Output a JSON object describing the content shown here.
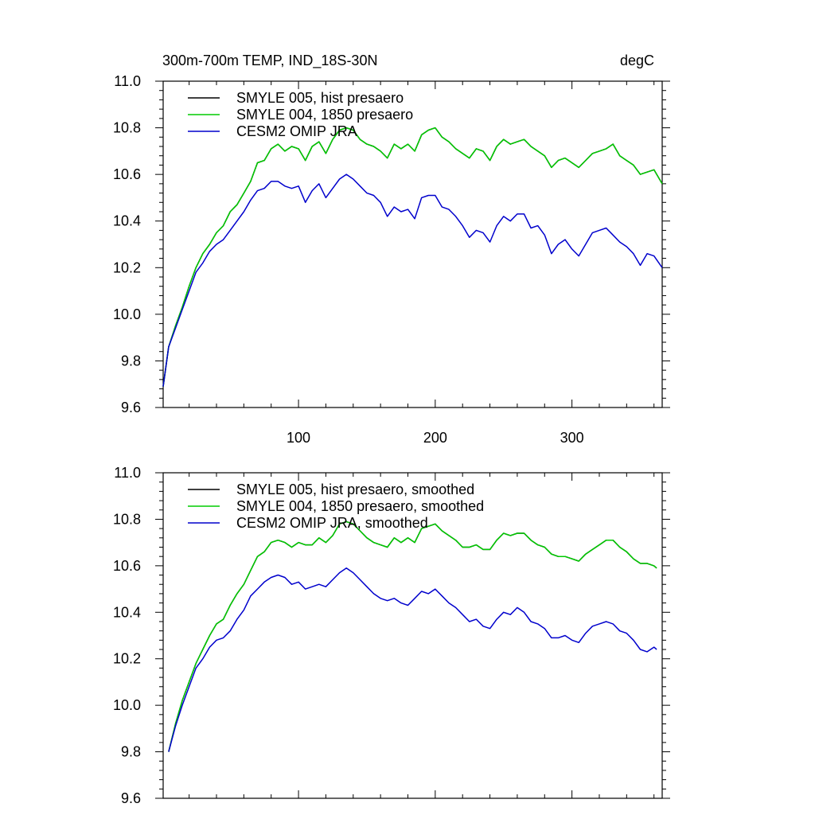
{
  "figure": {
    "title_left": "300m-700m TEMP, IND_18S-30N",
    "title_right": "degC"
  },
  "chart_data": [
    {
      "type": "line",
      "title": "300m-700m TEMP, IND_18S-30N",
      "units": "degC",
      "xlim": [
        1,
        366
      ],
      "ylim": [
        9.6,
        11.0
      ],
      "x_ticks": [
        100,
        200,
        300
      ],
      "x_tick_labels": [
        "100",
        "200",
        "300"
      ],
      "y_ticks": [
        9.6,
        9.8,
        10.0,
        10.2,
        10.4,
        10.6,
        10.8,
        11.0
      ],
      "y_tick_labels": [
        "9.6",
        "9.8",
        "10.0",
        "10.2",
        "10.4",
        "10.6",
        "10.8",
        "11.0"
      ],
      "grid": false,
      "legend_position": "top-left",
      "x": [
        1,
        5,
        10,
        15,
        20,
        25,
        30,
        35,
        40,
        45,
        50,
        55,
        60,
        65,
        70,
        75,
        80,
        85,
        90,
        95,
        100,
        105,
        110,
        115,
        120,
        125,
        130,
        135,
        140,
        145,
        150,
        155,
        160,
        165,
        170,
        175,
        180,
        185,
        190,
        195,
        200,
        205,
        210,
        215,
        220,
        225,
        230,
        235,
        240,
        245,
        250,
        255,
        260,
        265,
        270,
        275,
        280,
        285,
        290,
        295,
        300,
        305,
        310,
        315,
        320,
        325,
        330,
        335,
        340,
        345,
        350,
        355,
        360,
        366
      ],
      "series": [
        {
          "name": "SMYLE 005, hist presaero",
          "color": "#000000",
          "values": [
            9.69,
            9.86,
            9.95,
            10.03,
            10.12,
            10.2,
            10.26,
            10.3,
            10.35,
            10.38,
            10.44,
            10.47,
            10.52,
            10.57,
            10.65,
            10.66,
            10.71,
            10.73,
            10.7,
            10.72,
            10.71,
            10.66,
            10.72,
            10.74,
            10.69,
            10.75,
            10.79,
            10.8,
            10.79,
            10.75,
            10.73,
            10.72,
            10.7,
            10.67,
            10.73,
            10.71,
            10.73,
            10.7,
            10.77,
            10.79,
            10.8,
            10.76,
            10.74,
            10.71,
            10.69,
            10.67,
            10.71,
            10.7,
            10.66,
            10.72,
            10.75,
            10.73,
            10.74,
            10.75,
            10.72,
            10.7,
            10.68,
            10.63,
            10.66,
            10.67,
            10.65,
            10.63,
            10.66,
            10.69,
            10.7,
            10.71,
            10.73,
            10.68,
            10.66,
            10.64,
            10.6,
            10.61,
            10.62,
            10.56
          ]
        },
        {
          "name": "SMYLE 004, 1850 presaero",
          "color": "#00cc00",
          "values": [
            9.69,
            9.86,
            9.95,
            10.03,
            10.12,
            10.2,
            10.26,
            10.3,
            10.35,
            10.38,
            10.44,
            10.47,
            10.52,
            10.57,
            10.65,
            10.66,
            10.71,
            10.73,
            10.7,
            10.72,
            10.71,
            10.66,
            10.72,
            10.74,
            10.69,
            10.75,
            10.79,
            10.8,
            10.79,
            10.75,
            10.73,
            10.72,
            10.7,
            10.67,
            10.73,
            10.71,
            10.73,
            10.7,
            10.77,
            10.79,
            10.8,
            10.76,
            10.74,
            10.71,
            10.69,
            10.67,
            10.71,
            10.7,
            10.66,
            10.72,
            10.75,
            10.73,
            10.74,
            10.75,
            10.72,
            10.7,
            10.68,
            10.63,
            10.66,
            10.67,
            10.65,
            10.63,
            10.66,
            10.69,
            10.7,
            10.71,
            10.73,
            10.68,
            10.66,
            10.64,
            10.6,
            10.61,
            10.62,
            10.56
          ]
        },
        {
          "name": "CESM2 OMIP JRA",
          "color": "#0000cc",
          "values": [
            9.69,
            9.86,
            9.94,
            10.02,
            10.1,
            10.18,
            10.22,
            10.27,
            10.3,
            10.32,
            10.36,
            10.4,
            10.44,
            10.49,
            10.53,
            10.54,
            10.57,
            10.57,
            10.55,
            10.54,
            10.55,
            10.48,
            10.53,
            10.56,
            10.5,
            10.54,
            10.58,
            10.6,
            10.58,
            10.55,
            10.52,
            10.51,
            10.48,
            10.42,
            10.46,
            10.44,
            10.45,
            10.41,
            10.5,
            10.51,
            10.51,
            10.46,
            10.45,
            10.42,
            10.38,
            10.33,
            10.36,
            10.35,
            10.31,
            10.38,
            10.42,
            10.4,
            10.43,
            10.43,
            10.37,
            10.38,
            10.34,
            10.26,
            10.3,
            10.32,
            10.28,
            10.25,
            10.3,
            10.35,
            10.36,
            10.37,
            10.34,
            10.31,
            10.29,
            10.26,
            10.21,
            10.26,
            10.25,
            10.2
          ]
        }
      ]
    },
    {
      "type": "line",
      "xlim": [
        1,
        366
      ],
      "ylim": [
        9.6,
        11.0
      ],
      "x_ticks": [
        100,
        200,
        300
      ],
      "y_ticks": [
        9.6,
        9.8,
        10.0,
        10.2,
        10.4,
        10.6,
        10.8,
        11.0
      ],
      "y_tick_labels": [
        "9.6",
        "9.8",
        "10.0",
        "10.2",
        "10.4",
        "10.6",
        "10.8",
        "11.0"
      ],
      "grid": false,
      "legend_position": "top-left",
      "x": [
        5,
        10,
        15,
        20,
        25,
        30,
        35,
        40,
        45,
        50,
        55,
        60,
        65,
        70,
        75,
        80,
        85,
        90,
        95,
        100,
        105,
        110,
        115,
        120,
        125,
        130,
        135,
        140,
        145,
        150,
        155,
        160,
        165,
        170,
        175,
        180,
        185,
        190,
        195,
        200,
        205,
        210,
        215,
        220,
        225,
        230,
        235,
        240,
        245,
        250,
        255,
        260,
        265,
        270,
        275,
        280,
        285,
        290,
        295,
        300,
        305,
        310,
        315,
        320,
        325,
        330,
        335,
        340,
        345,
        350,
        355,
        360,
        362
      ],
      "series": [
        {
          "name": "SMYLE 005, hist presaero, smoothed",
          "color": "#000000",
          "values": [
            9.8,
            9.92,
            10.02,
            10.1,
            10.18,
            10.24,
            10.3,
            10.35,
            10.37,
            10.43,
            10.48,
            10.52,
            10.58,
            10.64,
            10.66,
            10.7,
            10.71,
            10.7,
            10.68,
            10.7,
            10.69,
            10.69,
            10.72,
            10.7,
            10.73,
            10.78,
            10.79,
            10.78,
            10.75,
            10.72,
            10.7,
            10.69,
            10.68,
            10.72,
            10.7,
            10.72,
            10.7,
            10.76,
            10.77,
            10.78,
            10.75,
            10.73,
            10.71,
            10.68,
            10.68,
            10.69,
            10.67,
            10.67,
            10.71,
            10.74,
            10.73,
            10.74,
            10.74,
            10.71,
            10.69,
            10.68,
            10.65,
            10.64,
            10.64,
            10.63,
            10.62,
            10.65,
            10.67,
            10.69,
            10.71,
            10.71,
            10.68,
            10.66,
            10.63,
            10.61,
            10.61,
            10.6,
            10.59
          ]
        },
        {
          "name": "SMYLE 004, 1850 presaero, smoothed",
          "color": "#00cc00",
          "values": [
            9.8,
            9.92,
            10.02,
            10.1,
            10.18,
            10.24,
            10.3,
            10.35,
            10.37,
            10.43,
            10.48,
            10.52,
            10.58,
            10.64,
            10.66,
            10.7,
            10.71,
            10.7,
            10.68,
            10.7,
            10.69,
            10.69,
            10.72,
            10.7,
            10.73,
            10.78,
            10.79,
            10.78,
            10.75,
            10.72,
            10.7,
            10.69,
            10.68,
            10.72,
            10.7,
            10.72,
            10.7,
            10.76,
            10.77,
            10.78,
            10.75,
            10.73,
            10.71,
            10.68,
            10.68,
            10.69,
            10.67,
            10.67,
            10.71,
            10.74,
            10.73,
            10.74,
            10.74,
            10.71,
            10.69,
            10.68,
            10.65,
            10.64,
            10.64,
            10.63,
            10.62,
            10.65,
            10.67,
            10.69,
            10.71,
            10.71,
            10.68,
            10.66,
            10.63,
            10.61,
            10.61,
            10.6,
            10.59
          ]
        },
        {
          "name": "CESM2 OMIP JRA, smoothed",
          "color": "#0000cc",
          "values": [
            9.8,
            9.91,
            10.0,
            10.08,
            10.16,
            10.2,
            10.25,
            10.28,
            10.29,
            10.32,
            10.37,
            10.41,
            10.47,
            10.5,
            10.53,
            10.55,
            10.56,
            10.55,
            10.52,
            10.53,
            10.5,
            10.51,
            10.52,
            10.51,
            10.54,
            10.57,
            10.59,
            10.57,
            10.54,
            10.51,
            10.48,
            10.46,
            10.45,
            10.46,
            10.44,
            10.43,
            10.46,
            10.49,
            10.48,
            10.5,
            10.47,
            10.44,
            10.42,
            10.39,
            10.36,
            10.37,
            10.34,
            10.33,
            10.37,
            10.4,
            10.39,
            10.42,
            10.4,
            10.36,
            10.35,
            10.33,
            10.29,
            10.29,
            10.3,
            10.28,
            10.27,
            10.31,
            10.34,
            10.35,
            10.36,
            10.35,
            10.32,
            10.31,
            10.28,
            10.24,
            10.23,
            10.25,
            10.24
          ]
        }
      ]
    }
  ]
}
